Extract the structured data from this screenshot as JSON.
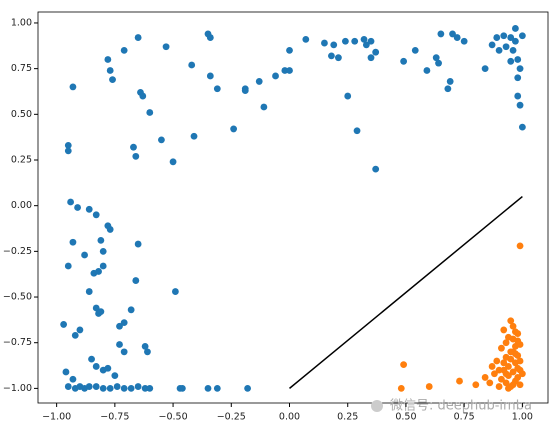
{
  "chart_data": {
    "type": "scatter",
    "xlim": [
      -1.08,
      1.11
    ],
    "ylim": [
      -1.08,
      1.06
    ],
    "xticks": [
      {
        "value": -1,
        "label": "−1.00"
      },
      {
        "value": -0.75,
        "label": "−0.75"
      },
      {
        "value": -0.5,
        "label": "−0.50"
      },
      {
        "value": -0.25,
        "label": "−0.25"
      },
      {
        "value": 0,
        "label": "0.00"
      },
      {
        "value": 0.25,
        "label": "0.25"
      },
      {
        "value": 0.5,
        "label": "0.50"
      },
      {
        "value": 0.75,
        "label": "0.75"
      },
      {
        "value": 1,
        "label": "1.00"
      }
    ],
    "yticks": [
      {
        "value": 1,
        "label": "1.00"
      },
      {
        "value": 0.75,
        "label": "0.75"
      },
      {
        "value": 0.5,
        "label": "0.50"
      },
      {
        "value": 0.25,
        "label": "0.25"
      },
      {
        "value": 0,
        "label": "0.00"
      },
      {
        "value": -0.25,
        "label": "−0.25"
      },
      {
        "value": -0.5,
        "label": "−0.50"
      },
      {
        "value": -0.75,
        "label": "−0.75"
      },
      {
        "value": -1,
        "label": "−1.00"
      }
    ],
    "series": [
      {
        "color": "#1f77b4",
        "x": [
          -0.93,
          -0.78,
          -0.77,
          -0.76,
          -0.71,
          -0.65,
          -0.53,
          -0.35,
          -0.34,
          -0.34,
          -0.42,
          -0.31,
          -0.19,
          -0.19,
          -0.13,
          -0.06,
          -0.02,
          0.0,
          0.0,
          0.07,
          0.15,
          0.19,
          0.18,
          0.21,
          0.24,
          0.28,
          0.32,
          0.33,
          0.35,
          0.35,
          0.37,
          0.54,
          0.49,
          0.59,
          0.64,
          0.63,
          0.65,
          0.7,
          0.72,
          0.75,
          0.68,
          0.69,
          0.84,
          0.87,
          0.89,
          0.9,
          0.92,
          0.93,
          0.95,
          0.96,
          0.97,
          0.98,
          0.98,
          0.98,
          0.99,
          1.0,
          0.99,
          1.0,
          0.97,
          0.95,
          -0.64,
          -0.63,
          -0.6,
          -0.67,
          -0.66,
          -0.55,
          -0.5,
          -0.41,
          -0.24,
          -0.11,
          0.25,
          0.29,
          0.37,
          -0.95,
          -0.95,
          -0.94,
          -0.91,
          -0.86,
          -0.83,
          -0.78,
          -0.77,
          -0.95,
          -0.93,
          -0.88,
          -0.84,
          -0.82,
          -0.8,
          -0.81,
          -0.8,
          -0.65,
          -0.66,
          -0.86,
          -0.83,
          -0.82,
          -0.81,
          -0.97,
          -0.92,
          -0.9,
          -0.68,
          -0.71,
          -0.73,
          -0.73,
          -0.62,
          -0.61,
          -0.49,
          -0.71,
          -0.96,
          -0.93,
          -0.85,
          -0.83,
          -0.8,
          -0.78,
          -0.75,
          -0.95,
          -0.92,
          -0.9,
          -0.88,
          -0.86,
          -0.83,
          -0.8,
          -0.77,
          -0.74,
          -0.71,
          -0.68,
          -0.65,
          -0.62,
          -0.6,
          -0.47,
          -0.46,
          -0.35,
          -0.31,
          -0.18
        ],
        "y": [
          0.65,
          0.8,
          0.74,
          0.69,
          0.85,
          0.92,
          0.87,
          0.94,
          0.92,
          0.71,
          0.77,
          0.64,
          0.64,
          0.63,
          0.68,
          0.71,
          0.74,
          0.74,
          0.85,
          0.91,
          0.89,
          0.88,
          0.82,
          0.81,
          0.9,
          0.9,
          0.91,
          0.88,
          0.9,
          0.81,
          0.84,
          0.85,
          0.79,
          0.74,
          0.78,
          0.81,
          0.94,
          0.94,
          0.92,
          0.9,
          0.64,
          0.68,
          0.75,
          0.88,
          0.92,
          0.85,
          0.93,
          0.87,
          0.92,
          0.85,
          0.9,
          0.8,
          0.7,
          0.6,
          0.75,
          0.93,
          0.55,
          0.43,
          0.97,
          0.79,
          0.62,
          0.6,
          0.51,
          0.32,
          0.27,
          0.36,
          0.24,
          0.38,
          0.42,
          0.54,
          0.6,
          0.41,
          0.2,
          0.33,
          0.3,
          0.02,
          -0.01,
          -0.02,
          -0.05,
          -0.11,
          -0.13,
          -0.33,
          -0.2,
          -0.27,
          -0.37,
          -0.36,
          -0.33,
          -0.19,
          -0.25,
          -0.21,
          -0.41,
          -0.47,
          -0.56,
          -0.59,
          -0.58,
          -0.65,
          -0.71,
          -0.68,
          -0.57,
          -0.64,
          -0.66,
          -0.76,
          -0.77,
          -0.8,
          -0.47,
          -0.8,
          -0.91,
          -0.95,
          -0.84,
          -0.88,
          -0.9,
          -0.89,
          -0.93,
          -0.99,
          -1.0,
          -0.99,
          -1.0,
          -0.99,
          -0.99,
          -1.0,
          -1.0,
          -0.99,
          -1.0,
          -1.0,
          -0.99,
          -1.0,
          -1.0,
          -1.0,
          -1.0,
          -1.0,
          -1.0,
          -1.0
        ]
      },
      {
        "color": "#ff7f0e",
        "x": [
          0.99,
          0.49,
          0.48,
          0.6,
          0.73,
          0.8,
          0.84,
          0.86,
          0.88,
          0.9,
          0.91,
          0.92,
          0.93,
          0.94,
          0.95,
          0.96,
          0.97,
          0.98,
          0.99,
          1.0,
          0.87,
          0.89,
          0.9,
          0.92,
          0.93,
          0.94,
          0.95,
          0.96,
          0.97,
          0.98,
          0.99,
          0.91,
          0.93,
          0.95,
          0.96,
          0.97,
          0.98,
          0.99,
          0.92,
          0.94,
          0.96,
          0.97,
          0.98,
          0.95,
          0.97,
          0.99,
          0.93,
          0.96,
          0.98,
          0.94
        ],
        "y": [
          -0.22,
          -0.87,
          -1.0,
          -0.99,
          -0.96,
          -0.98,
          -0.94,
          -0.97,
          -0.92,
          -0.99,
          -0.95,
          -0.9,
          -0.97,
          -0.93,
          -0.99,
          -0.91,
          -0.96,
          -0.94,
          -0.98,
          -0.92,
          -0.88,
          -0.85,
          -0.9,
          -0.86,
          -0.83,
          -0.88,
          -0.84,
          -0.8,
          -0.86,
          -0.82,
          -0.9,
          -0.78,
          -0.75,
          -0.8,
          -0.73,
          -0.77,
          -0.7,
          -0.76,
          -0.68,
          -0.72,
          -0.66,
          -0.69,
          -0.74,
          -0.63,
          -0.81,
          -0.85,
          -0.92,
          -0.98,
          -0.89,
          -1.0
        ]
      }
    ],
    "line": {
      "color": "#000000",
      "x": [
        0,
        1
      ],
      "y": [
        -1,
        0.05
      ]
    },
    "watermark": "微信号: deephub-imba"
  }
}
